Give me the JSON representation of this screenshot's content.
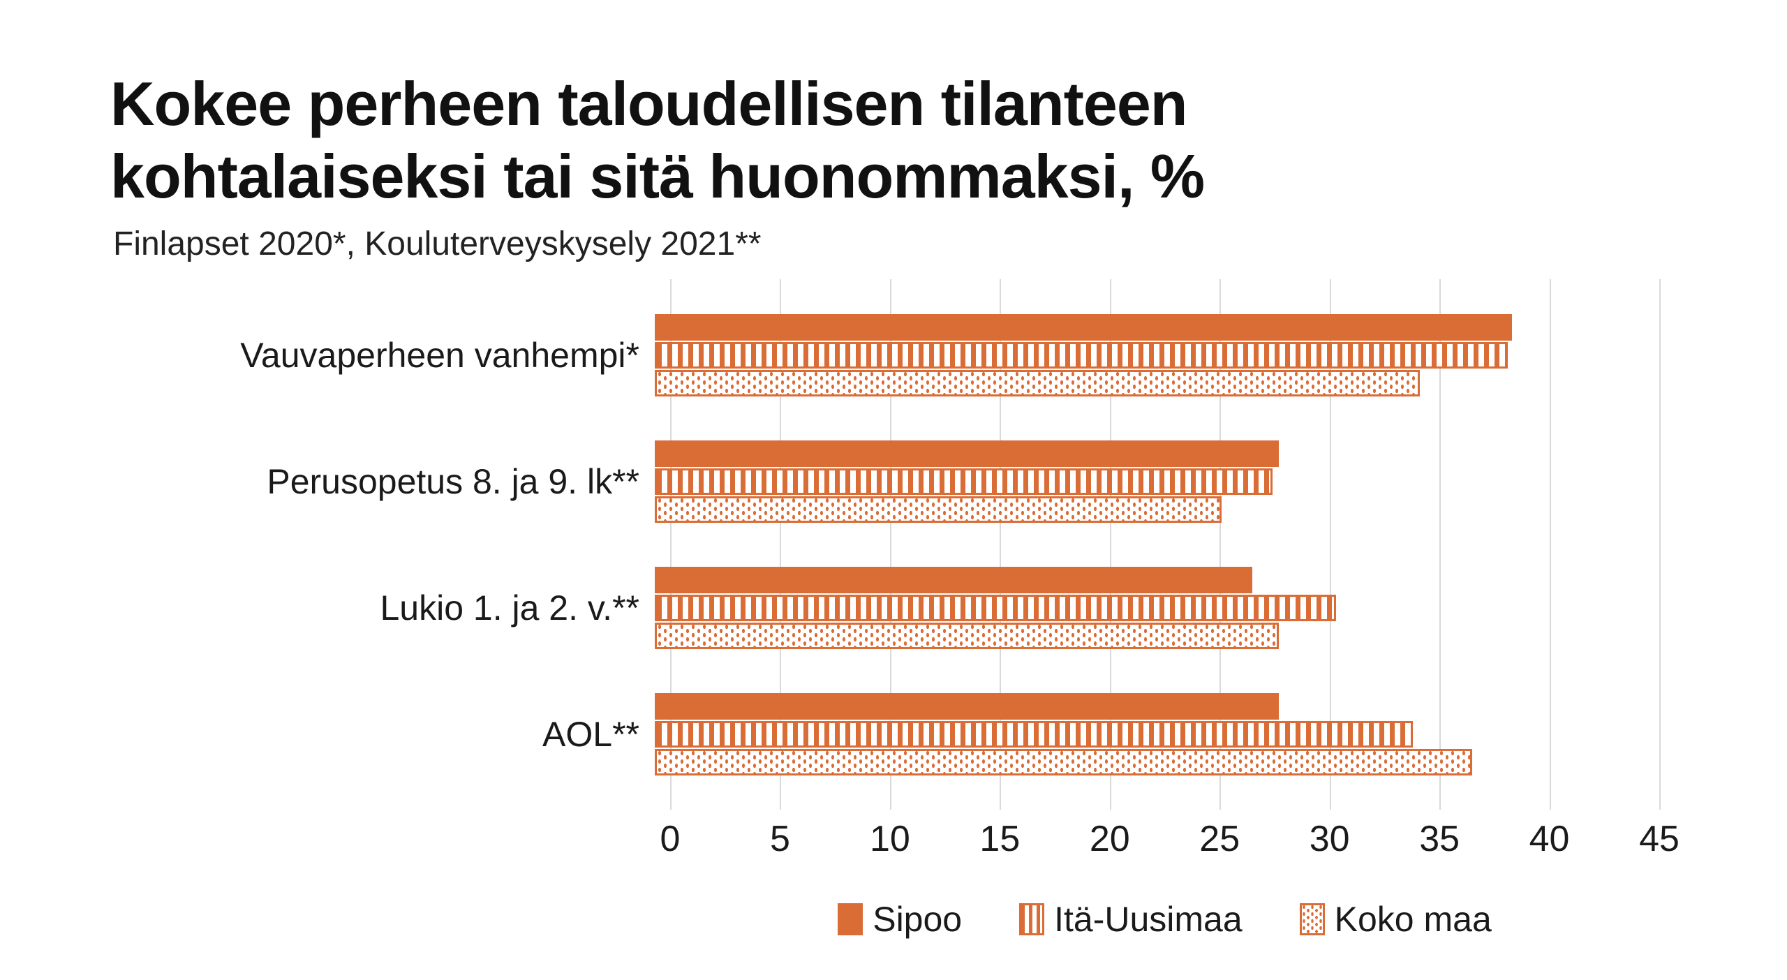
{
  "header": {
    "title": "Kokee perheen taloudellisen tilanteen kohtalaiseksi tai sitä huonommaksi, %",
    "subtitle": "Finlapset 2020*, Kouluterveyskysely 2021**"
  },
  "colors": {
    "bar_orange": "#DA6C36",
    "gridline": "#D9D9D9",
    "text": "#1A1A1A",
    "background": "#FFFFFF"
  },
  "chart_data": {
    "type": "bar",
    "orientation": "horizontal",
    "title": "Kokee perheen taloudellisen tilanteen kohtalaiseksi tai sitä huonommaksi, %",
    "subtitle": "Finlapset 2020*, Kouluterveyskysely 2021**",
    "categories": [
      "Vauvaperheen vanhempi*",
      "Perusopetus 8. ja 9. lk**",
      "Lukio 1. ja 2. v.**",
      "AOL**"
    ],
    "series": [
      {
        "name": "Sipoo",
        "pattern": "solid",
        "values": [
          39.0,
          28.4,
          27.2,
          28.4
        ]
      },
      {
        "name": "Itä-Uusimaa",
        "pattern": "vertical-stripes",
        "values": [
          38.8,
          28.1,
          31.0,
          34.5
        ]
      },
      {
        "name": "Koko maa",
        "pattern": "dots",
        "values": [
          34.8,
          25.8,
          28.4,
          37.2
        ]
      }
    ],
    "xlabel": "",
    "ylabel": "",
    "xlim": [
      0,
      45
    ],
    "x_ticks": [
      0,
      5,
      10,
      15,
      20,
      25,
      30,
      35,
      40,
      45
    ],
    "grid": "vertical",
    "legend_position": "bottom",
    "bar_color": "#DA6C36"
  }
}
